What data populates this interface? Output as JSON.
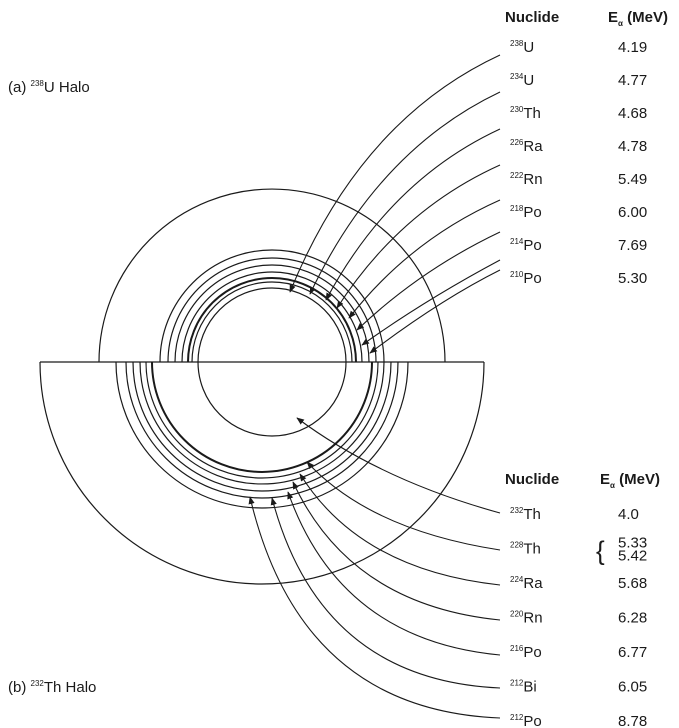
{
  "halo_a": {
    "title_prefix": "(a) ",
    "title_mass": "238",
    "title_rest": "U Halo",
    "header_nuclide": "Nuclide",
    "header_energy_main": "E",
    "header_energy_sub": "α",
    "header_energy_unit": " (MeV)",
    "rows": [
      {
        "mass": "238",
        "symbol": "U",
        "energy": "4.19"
      },
      {
        "mass": "234",
        "symbol": "U",
        "energy": "4.77"
      },
      {
        "mass": "230",
        "symbol": "Th",
        "energy": "4.68"
      },
      {
        "mass": "226",
        "symbol": "Ra",
        "energy": "4.78"
      },
      {
        "mass": "222",
        "symbol": "Rn",
        "energy": "5.49"
      },
      {
        "mass": "218",
        "symbol": "Po",
        "energy": "6.00"
      },
      {
        "mass": "214",
        "symbol": "Po",
        "energy": "7.69"
      },
      {
        "mass": "210",
        "symbol": "Po",
        "energy": "5.30"
      }
    ]
  },
  "halo_b": {
    "title_prefix": "(b) ",
    "title_mass": "232",
    "title_rest": "Th Halo",
    "header_nuclide": "Nuclide",
    "header_energy_main": "E",
    "header_energy_sub": "α",
    "header_energy_unit": " (MeV)",
    "rows": [
      {
        "mass": "232",
        "symbol": "Th",
        "energy": "4.0"
      },
      {
        "mass": "228",
        "symbol": "Th",
        "energy": "5.33",
        "energy2": "5.42",
        "brace": "{"
      },
      {
        "mass": "224",
        "symbol": "Ra",
        "energy": "5.68"
      },
      {
        "mass": "220",
        "symbol": "Rn",
        "energy": "6.28"
      },
      {
        "mass": "216",
        "symbol": "Po",
        "energy": "6.77"
      },
      {
        "mass": "212",
        "symbol": "Bi",
        "energy": "6.05"
      },
      {
        "mass": "212",
        "symbol": "Po",
        "energy": "8.78"
      }
    ]
  }
}
